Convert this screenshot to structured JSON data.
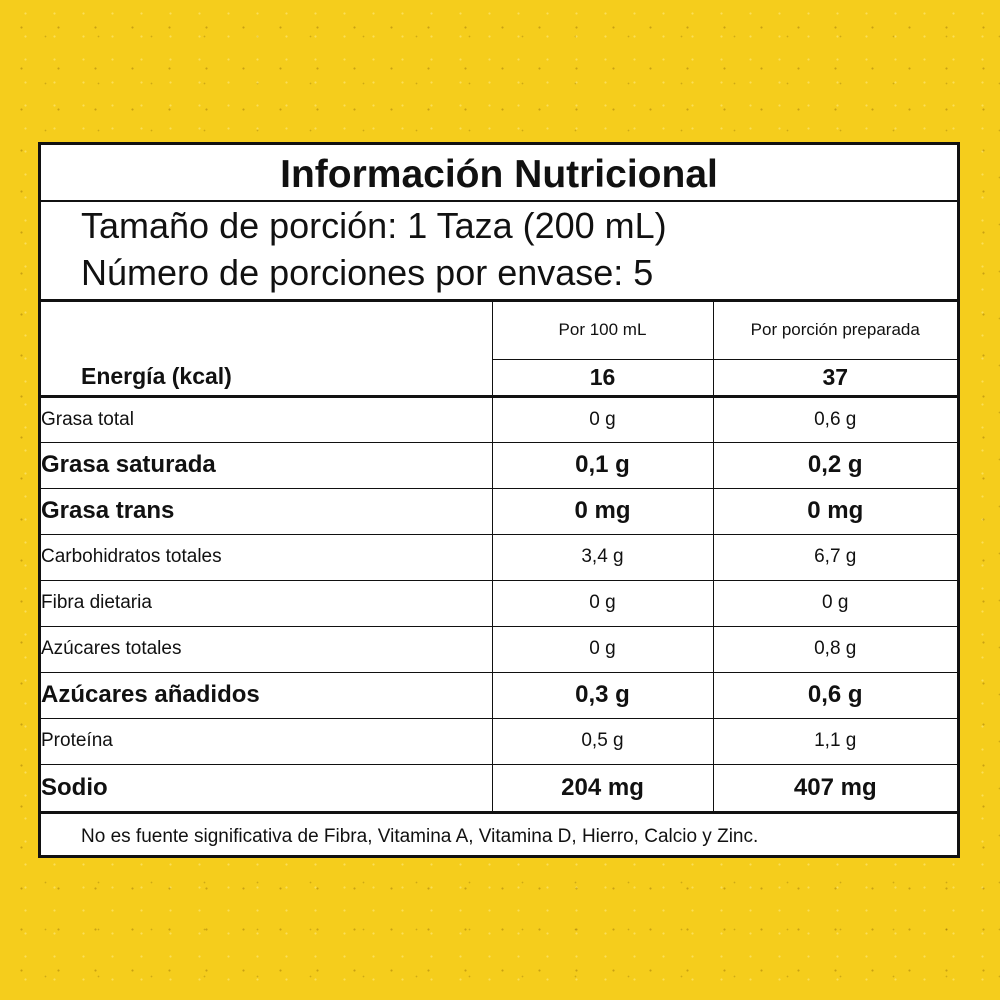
{
  "label": {
    "title": "Información Nutricional",
    "serving_size": "Tamaño de porción: 1 Taza (200 mL)",
    "servings_per_container": "Número de porciones por envase: 5",
    "column_headers": [
      "Por 100 mL",
      "Por porción preparada"
    ],
    "energy": {
      "name": "Energía (kcal)",
      "per100": "16",
      "perServing": "37"
    },
    "rows": [
      {
        "name": "Grasa total",
        "per100": "0 g",
        "perServing": "0,6 g"
      },
      {
        "name": "Grasa saturada",
        "per100": "0,1 g",
        "perServing": "0,2 g"
      },
      {
        "name": "Grasa trans",
        "per100": "0 mg",
        "perServing": "0 mg"
      },
      {
        "name": "Carbohidratos totales",
        "per100": "3,4 g",
        "perServing": "6,7 g"
      },
      {
        "name": "Fibra dietaria",
        "per100": "0 g",
        "perServing": "0 g"
      },
      {
        "name": "Azúcares totales",
        "per100": "0 g",
        "perServing": "0,8 g"
      },
      {
        "name": "Azúcares añadidos",
        "per100": "0,3 g",
        "perServing": "0,6 g"
      },
      {
        "name": "Proteína",
        "per100": "0,5 g",
        "perServing": "1,1 g"
      },
      {
        "name": "Sodio",
        "per100": "204 mg",
        "perServing": "407 mg"
      }
    ],
    "footnote": "No es fuente significativa de Fibra, Vitamina A, Vitamina D, Hierro, Calcio y Zinc."
  },
  "colors": {
    "background": "#f5cd1c",
    "panel": "#ffffff",
    "ink": "#111111"
  }
}
